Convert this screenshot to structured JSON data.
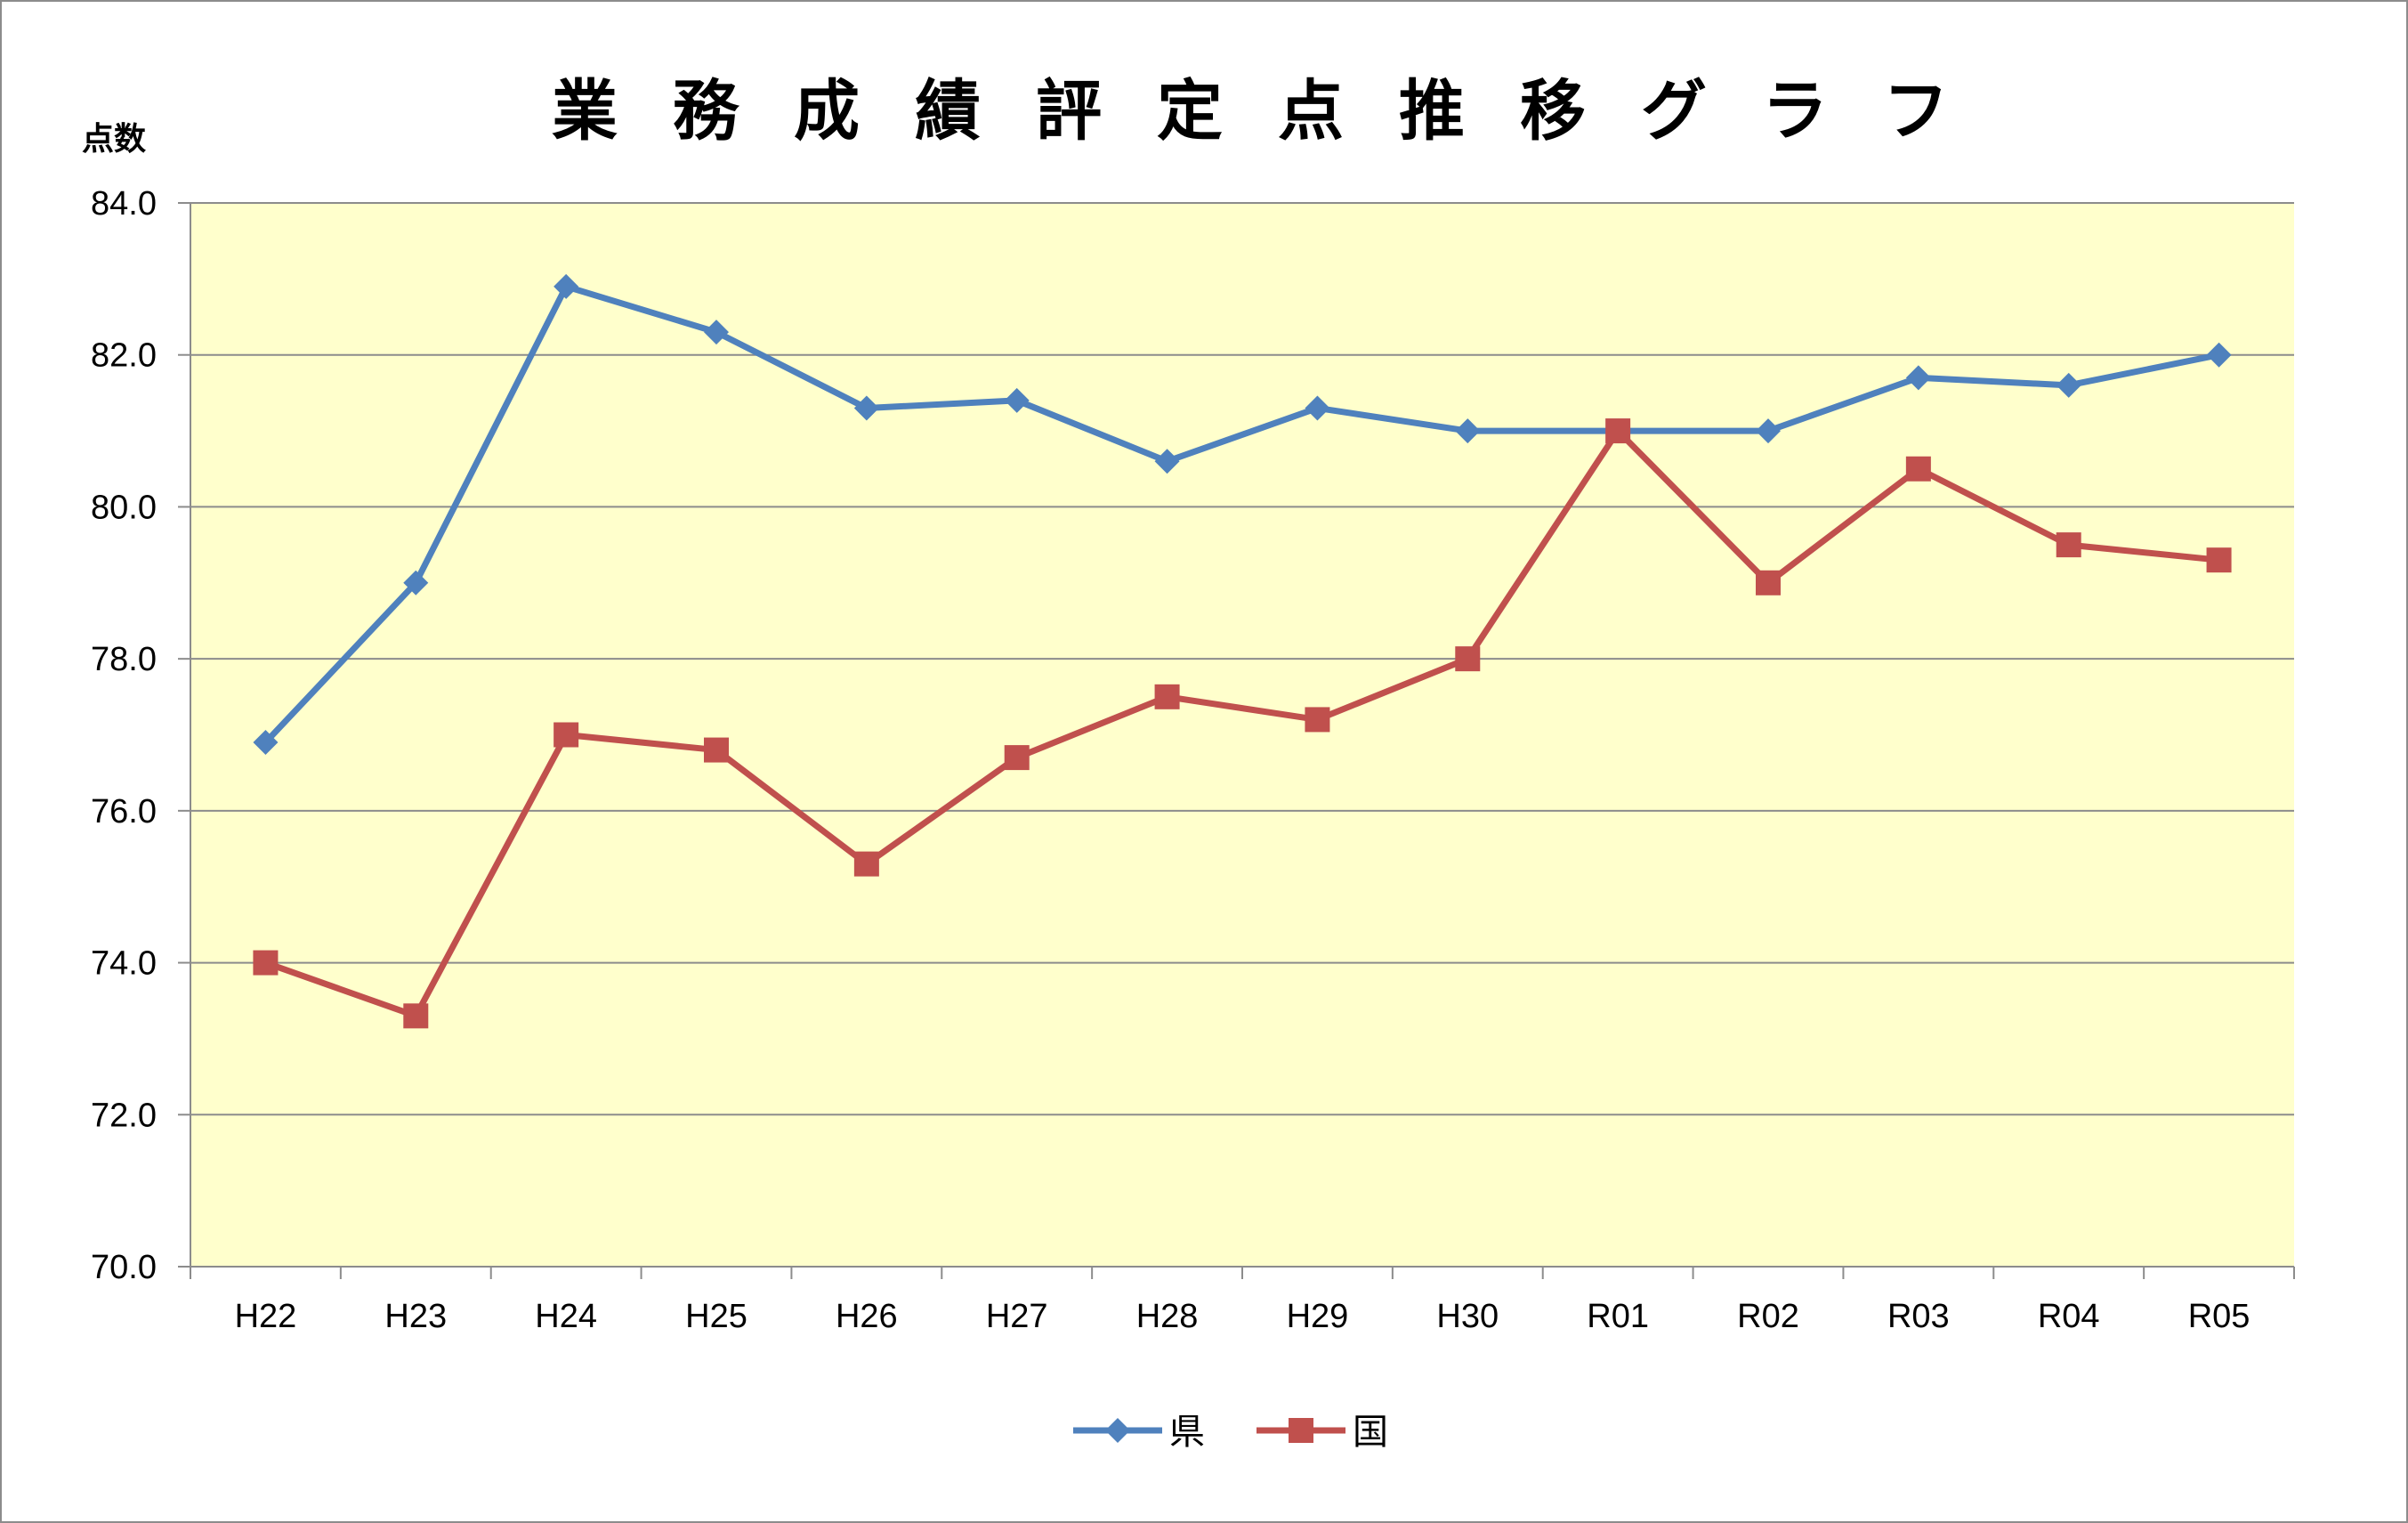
{
  "chart_data": {
    "type": "line",
    "title": "業務成績評定点推移グラフ",
    "ylabel": "点数",
    "xlabel": "",
    "categories": [
      "H22",
      "H23",
      "H24",
      "H25",
      "H26",
      "H27",
      "H28",
      "H29",
      "H30",
      "R01",
      "R02",
      "R03",
      "R04",
      "R05"
    ],
    "ylim": [
      70,
      84
    ],
    "yticks": [
      "70.0",
      "72.0",
      "74.0",
      "76.0",
      "78.0",
      "80.0",
      "82.0",
      "84.0"
    ],
    "grid": true,
    "legend": "bottom",
    "plot_background": "#ffffcc",
    "series": [
      {
        "name": "県",
        "color": "#4f81bd",
        "marker": "diamond",
        "values": [
          76.9,
          79.0,
          82.9,
          82.3,
          81.3,
          81.4,
          80.6,
          81.3,
          81.0,
          81.0,
          81.0,
          81.7,
          81.6,
          82.0
        ]
      },
      {
        "name": "国",
        "color": "#c0504d",
        "marker": "square",
        "values": [
          74.0,
          73.3,
          77.0,
          76.8,
          75.3,
          76.7,
          77.5,
          77.2,
          78.0,
          81.0,
          79.0,
          80.5,
          79.5,
          79.3
        ]
      }
    ]
  }
}
